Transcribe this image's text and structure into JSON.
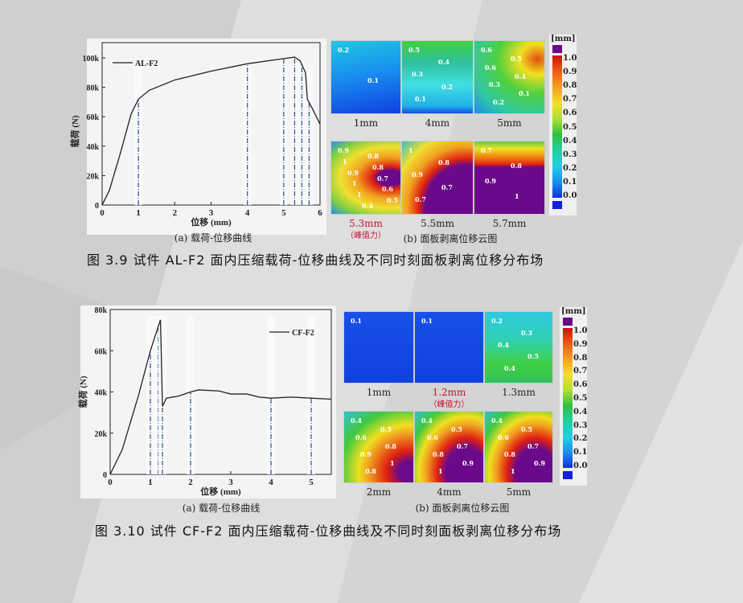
{
  "figure1": {
    "plot": {
      "caption": "(a) 载荷-位移曲线",
      "chart_data": {
        "type": "line",
        "xlabel": "位移 (mm)",
        "ylabel": "载荷 (N)",
        "xlim": [
          0,
          6
        ],
        "ylim": [
          0,
          100000
        ],
        "x_ticks": [
          "0",
          "1",
          "2",
          "3",
          "4",
          "5",
          "6"
        ],
        "y_ticks": [
          "0",
          "20k",
          "40k",
          "60k",
          "80k",
          "100k"
        ],
        "legend": "top-left",
        "series": [
          {
            "name": "AL-F2",
            "x": [
              0,
              0.2,
              0.5,
              0.8,
              1,
              1.3,
              2,
              3,
              4,
              5,
              5.3,
              5.45,
              5.6,
              5.65,
              5.8,
              6
            ],
            "y": [
              0,
              10000,
              35000,
              62000,
              72000,
              78000,
              85000,
              91000,
              96000,
              99500,
              100500,
              98000,
              90000,
              72000,
              65000,
              55000
            ]
          }
        ],
        "markers_x": [
          1,
          4,
          5,
          5.3,
          5.5,
          5.7
        ]
      }
    },
    "contour": {
      "caption": "(b) 面板剥离位移云图",
      "panels": [
        {
          "label": "1mm",
          "labels": [
            "0.2",
            "0.1"
          ]
        },
        {
          "label": "4mm",
          "labels": [
            "0.5",
            "0.4",
            "0.3",
            "0.2",
            "0.1"
          ]
        },
        {
          "label": "5mm",
          "labels": [
            "0.6",
            "0.5",
            "0.6",
            "0.4",
            "0.3",
            "0.1",
            "0.2"
          ]
        },
        {
          "label": "5.3mm",
          "note": "（峰值力）",
          "highlight": true,
          "labels": [
            "0.9",
            "0.8",
            "1",
            "0.8",
            "0.9",
            "0.7",
            "1",
            "0.6",
            "1",
            "0.5",
            "0.4"
          ]
        },
        {
          "label": "5.5mm",
          "labels": [
            "1",
            "0.8",
            "0.9",
            "0.7",
            "0.7"
          ]
        },
        {
          "label": "5.7mm",
          "labels": [
            "0.7",
            "0.8",
            "0.9",
            "1"
          ]
        }
      ],
      "colorbar": {
        "unit": "[mm]",
        "ticks": [
          "1.0",
          "0.9",
          "0.8",
          "0.7",
          "0.6",
          "0.5",
          "0.4",
          "0.3",
          "0.2",
          "0.1",
          "0.0"
        ]
      }
    },
    "caption": "图 3.9  试件 AL-F2 面内压缩载荷-位移曲线及不同时刻面板剥离位移分布场"
  },
  "figure2": {
    "plot": {
      "caption": "(a) 载荷-位移曲线",
      "chart_data": {
        "type": "line",
        "xlabel": "位移 (mm)",
        "ylabel": "载荷 (N)",
        "xlim": [
          0,
          5.5
        ],
        "ylim": [
          0,
          80000
        ],
        "x_ticks": [
          "0",
          "1",
          "2",
          "3",
          "4",
          "5"
        ],
        "y_ticks": [
          "0",
          "20k",
          "40k",
          "60k",
          "80k"
        ],
        "legend": "top-right",
        "series": [
          {
            "name": "CF-F2",
            "x": [
              0,
              0.3,
              0.7,
              1,
              1.25,
              1.27,
              1.3,
              1.4,
              1.7,
              2,
              2.2,
              2.7,
              3,
              3.4,
              3.7,
              4,
              4.5,
              5,
              5.5
            ],
            "y": [
              0,
              12000,
              38000,
              60000,
              75000,
              60000,
              33000,
              37000,
              38000,
              40000,
              41000,
              40500,
              39000,
              39000,
              37500,
              37000,
              37500,
              37000,
              36500
            ]
          }
        ],
        "markers_x": [
          1,
          1.2,
          1.3,
          2,
          4,
          5
        ]
      }
    },
    "contour": {
      "caption": "(b) 面板剥离位移云图",
      "panels": [
        {
          "label": "1mm",
          "labels": [
            "0.1"
          ]
        },
        {
          "label": "1.2mm",
          "note": "（峰值力）",
          "highlight": true,
          "labels": [
            "0.1"
          ]
        },
        {
          "label": "1.3mm",
          "labels": [
            "0.2",
            "0.3",
            "0.4",
            "0.5",
            "0.4"
          ]
        },
        {
          "label": "2mm",
          "labels": [
            "0.4",
            "0.5",
            "0.6",
            "0.8",
            "0.9",
            "1",
            "0.8"
          ]
        },
        {
          "label": "4mm",
          "labels": [
            "0.4",
            "0.5",
            "0.6",
            "0.7",
            "0.8",
            "0.9",
            "1"
          ]
        },
        {
          "label": "5mm",
          "labels": [
            "0.4",
            "0.5",
            "0.6",
            "0.7",
            "0.8",
            "0.9",
            "1"
          ]
        }
      ],
      "colorbar": {
        "unit": "[mm]",
        "ticks": [
          "1.0",
          "0.9",
          "0.8",
          "0.7",
          "0.6",
          "0.5",
          "0.4",
          "0.3",
          "0.2",
          "0.1",
          "0.0"
        ]
      }
    },
    "caption": "图 3.10  试件 CF-F2 面内压缩载荷-位移曲线及不同时刻面板剥离位移分布场"
  },
  "colors": {
    "curve": "#222222",
    "marker": "#3a5a9a",
    "highlight": "#c8102e",
    "over": "#6a0a8a",
    "under": "#1020e0"
  }
}
